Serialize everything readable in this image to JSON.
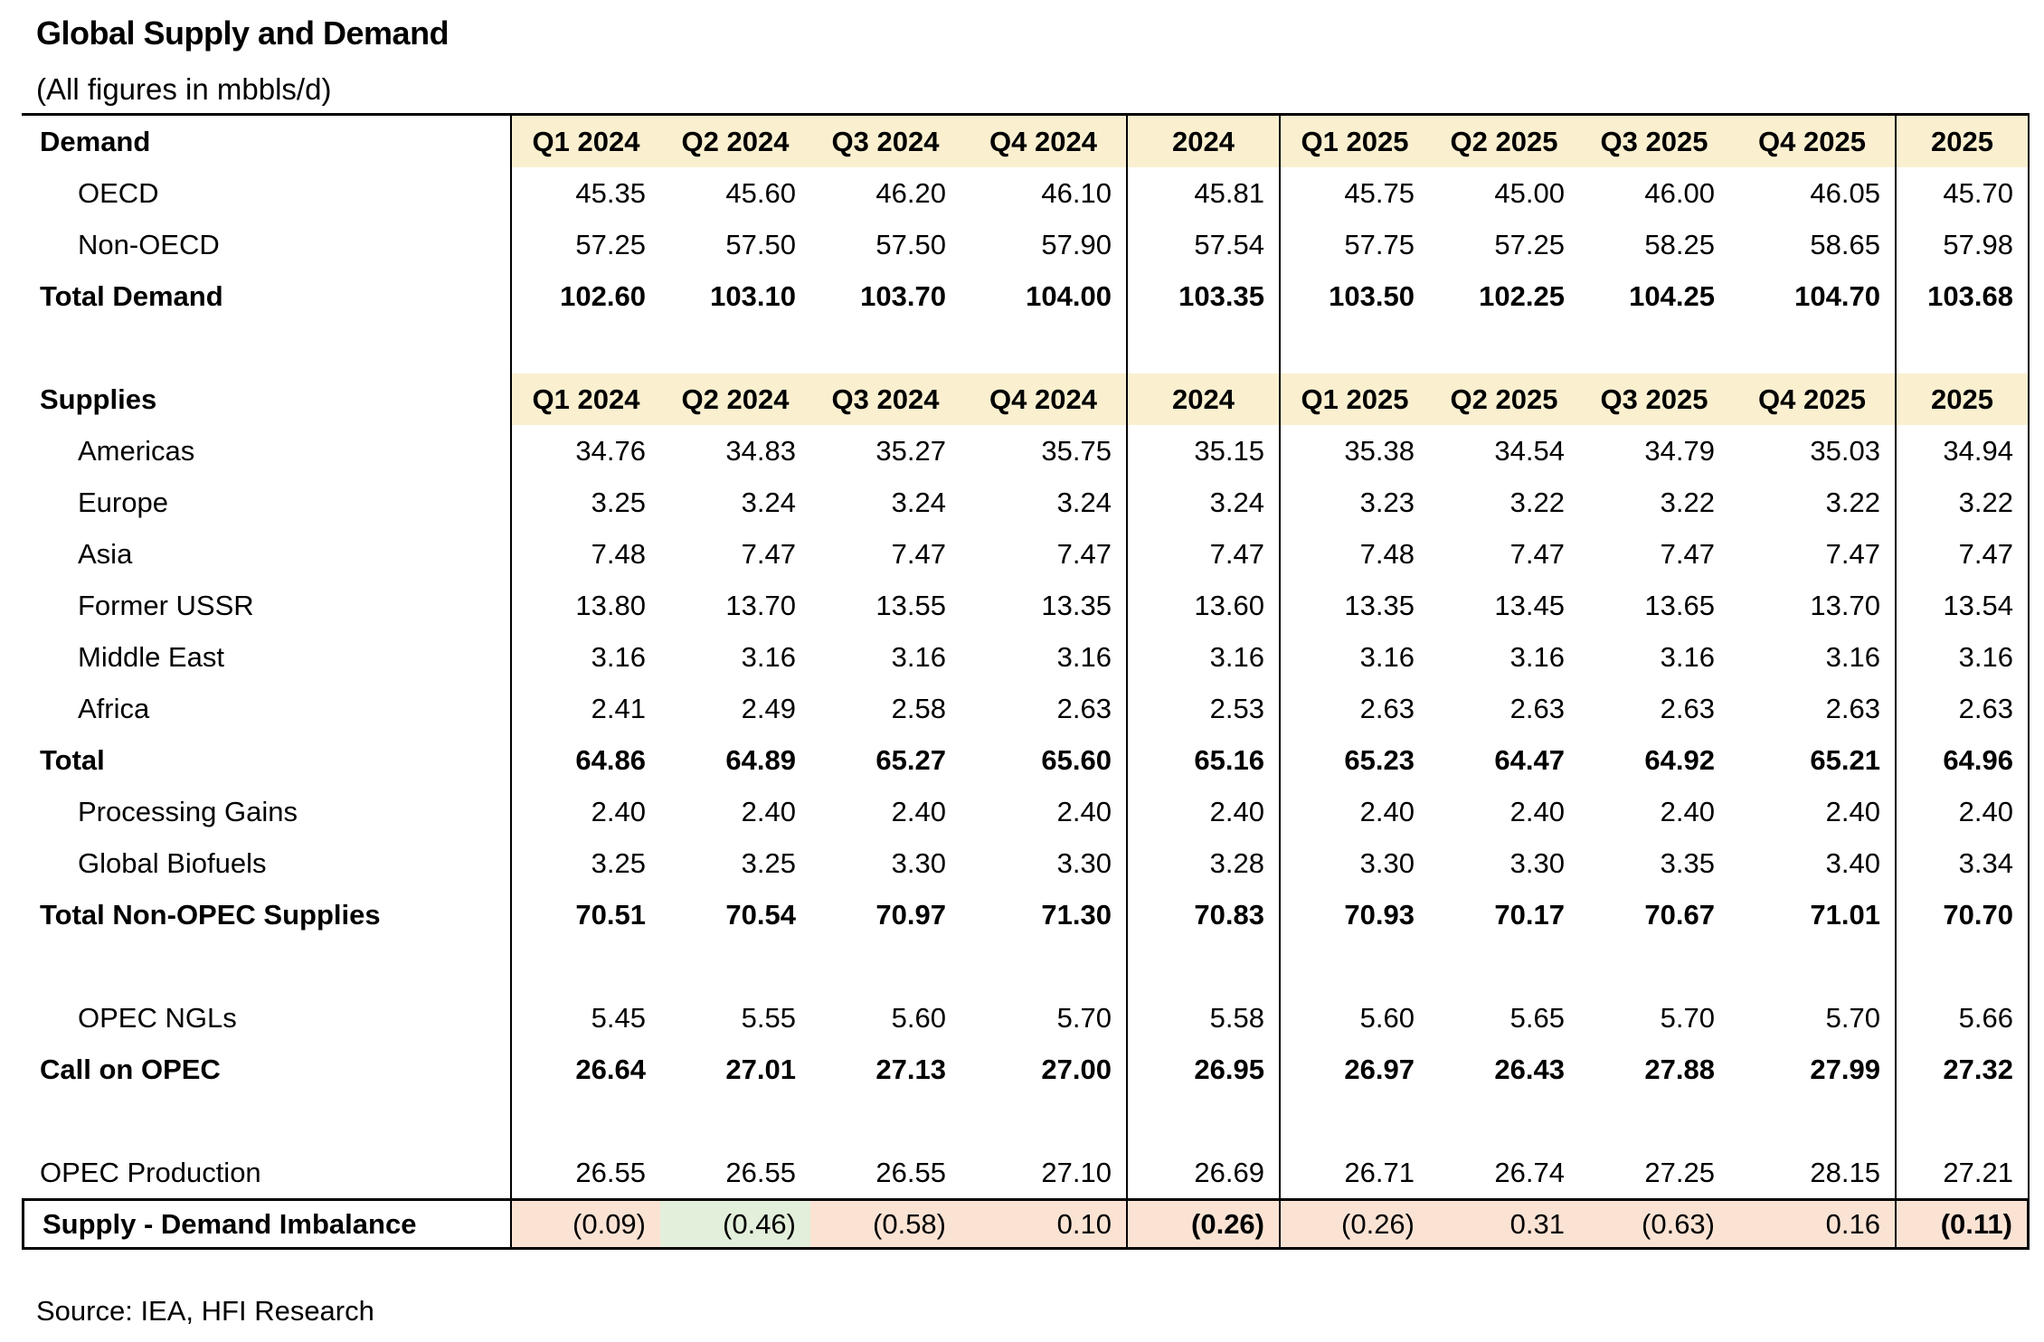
{
  "title": "Global Supply and Demand",
  "subtitle": "(All figures in mbbls/d)",
  "source": "Source: IEA, HFI Research",
  "colors": {
    "header_fill": "#FAF0D0",
    "negative_fill": "#FBE3D4",
    "positive_fill": "#E2EFDA"
  },
  "chart_data": {
    "type": "table",
    "columns": [
      "Q1 2024",
      "Q2 2024",
      "Q3 2024",
      "Q4 2024",
      "2024",
      "Q1 2025",
      "Q2 2025",
      "Q3 2025",
      "Q4 2025",
      "2025"
    ],
    "rows": [
      {
        "name": "demand-section-header",
        "label": "Demand",
        "type": "colhead"
      },
      {
        "name": "oecd",
        "label": "OECD",
        "indent": true,
        "values": [
          "45.35",
          "45.60",
          "46.20",
          "46.10",
          "45.81",
          "45.75",
          "45.00",
          "46.00",
          "46.05",
          "45.70"
        ]
      },
      {
        "name": "non-oecd",
        "label": "Non-OECD",
        "indent": true,
        "values": [
          "57.25",
          "57.50",
          "57.50",
          "57.90",
          "57.54",
          "57.75",
          "57.25",
          "58.25",
          "58.65",
          "57.98"
        ]
      },
      {
        "name": "total-demand",
        "label": "Total Demand",
        "bold": true,
        "values": [
          "102.60",
          "103.10",
          "103.70",
          "104.00",
          "103.35",
          "103.50",
          "102.25",
          "104.25",
          "104.70",
          "103.68"
        ]
      },
      {
        "name": "spacer-1",
        "type": "blank"
      },
      {
        "name": "supplies-section-header",
        "label": "Supplies",
        "type": "colhead"
      },
      {
        "name": "americas",
        "label": "Americas",
        "indent": true,
        "values": [
          "34.76",
          "34.83",
          "35.27",
          "35.75",
          "35.15",
          "35.38",
          "34.54",
          "34.79",
          "35.03",
          "34.94"
        ]
      },
      {
        "name": "europe",
        "label": "Europe",
        "indent": true,
        "values": [
          "3.25",
          "3.24",
          "3.24",
          "3.24",
          "3.24",
          "3.23",
          "3.22",
          "3.22",
          "3.22",
          "3.22"
        ]
      },
      {
        "name": "asia",
        "label": "Asia",
        "indent": true,
        "values": [
          "7.48",
          "7.47",
          "7.47",
          "7.47",
          "7.47",
          "7.48",
          "7.47",
          "7.47",
          "7.47",
          "7.47"
        ]
      },
      {
        "name": "former-ussr",
        "label": "Former USSR",
        "indent": true,
        "values": [
          "13.80",
          "13.70",
          "13.55",
          "13.35",
          "13.60",
          "13.35",
          "13.45",
          "13.65",
          "13.70",
          "13.54"
        ]
      },
      {
        "name": "middle-east",
        "label": "Middle East",
        "indent": true,
        "values": [
          "3.16",
          "3.16",
          "3.16",
          "3.16",
          "3.16",
          "3.16",
          "3.16",
          "3.16",
          "3.16",
          "3.16"
        ]
      },
      {
        "name": "africa",
        "label": "Africa",
        "indent": true,
        "values": [
          "2.41",
          "2.49",
          "2.58",
          "2.63",
          "2.53",
          "2.63",
          "2.63",
          "2.63",
          "2.63",
          "2.63"
        ]
      },
      {
        "name": "total-supplies",
        "label": "Total",
        "bold": true,
        "values": [
          "64.86",
          "64.89",
          "65.27",
          "65.60",
          "65.16",
          "65.23",
          "64.47",
          "64.92",
          "65.21",
          "64.96"
        ]
      },
      {
        "name": "processing-gains",
        "label": "Processing Gains",
        "indent": true,
        "values": [
          "2.40",
          "2.40",
          "2.40",
          "2.40",
          "2.40",
          "2.40",
          "2.40",
          "2.40",
          "2.40",
          "2.40"
        ]
      },
      {
        "name": "global-biofuels",
        "label": "Global Biofuels",
        "indent": true,
        "values": [
          "3.25",
          "3.25",
          "3.30",
          "3.30",
          "3.28",
          "3.30",
          "3.30",
          "3.35",
          "3.40",
          "3.34"
        ]
      },
      {
        "name": "total-non-opec-supplies",
        "label": "Total Non-OPEC Supplies",
        "bold": true,
        "values": [
          "70.51",
          "70.54",
          "70.97",
          "71.30",
          "70.83",
          "70.93",
          "70.17",
          "70.67",
          "71.01",
          "70.70"
        ]
      },
      {
        "name": "spacer-2",
        "type": "blank"
      },
      {
        "name": "opec-ngls",
        "label": "OPEC NGLs",
        "indent": true,
        "values": [
          "5.45",
          "5.55",
          "5.60",
          "5.70",
          "5.58",
          "5.60",
          "5.65",
          "5.70",
          "5.70",
          "5.66"
        ]
      },
      {
        "name": "call-on-opec",
        "label": "Call on OPEC",
        "bold": true,
        "values": [
          "26.64",
          "27.01",
          "27.13",
          "27.00",
          "26.95",
          "26.97",
          "26.43",
          "27.88",
          "27.99",
          "27.32"
        ]
      },
      {
        "name": "spacer-3",
        "type": "blank"
      },
      {
        "name": "opec-production",
        "label": "OPEC Production",
        "values": [
          "26.55",
          "26.55",
          "26.55",
          "27.10",
          "26.69",
          "26.71",
          "26.74",
          "27.25",
          "28.15",
          "27.21"
        ]
      },
      {
        "name": "supply-demand-imbalance",
        "label": "Supply - Demand Imbalance",
        "type": "imbalance",
        "bold_label": true,
        "values": [
          "(0.09)",
          "(0.46)",
          "(0.58)",
          "0.10",
          "(0.26)",
          "(0.26)",
          "0.31",
          "(0.63)",
          "0.16",
          "(0.11)"
        ],
        "fills": [
          "neg",
          "pos",
          "neg",
          "neg",
          "neg",
          "neg",
          "neg",
          "neg",
          "neg",
          "neg"
        ],
        "bold_cells": [
          4,
          9
        ]
      }
    ]
  }
}
